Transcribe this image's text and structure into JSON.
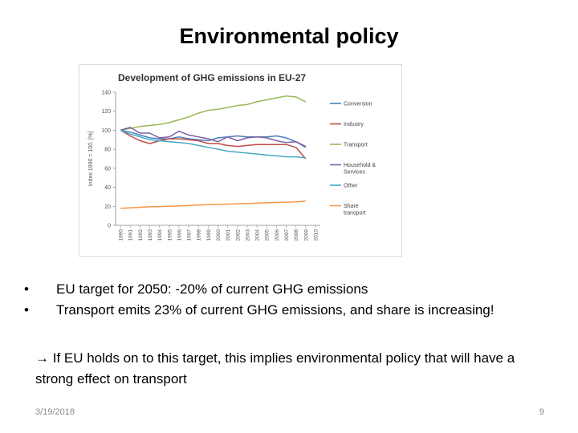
{
  "slide": {
    "title": "Environmental policy",
    "bullets": [
      "EU target for 2050:  -20% of current GHG emissions",
      "Transport emits 23% of current GHG emissions, and share is increasing!"
    ],
    "bullet_symbol": "•",
    "note": "→ If EU holds on to this target, this implies environmental policy that will have a strong effect on transport",
    "footer_date": "3/19/2018",
    "page_number": "9"
  },
  "chart_data": {
    "type": "line",
    "title": "Development of GHG emissions in EU-27",
    "ylabel": "Index 1990 = 100, [%]",
    "xlabel": "",
    "ylim": [
      0,
      140
    ],
    "yticks": [
      0,
      20,
      40,
      60,
      80,
      100,
      120,
      140
    ],
    "grid": false,
    "legend_position": "right",
    "x": [
      "1990",
      "1991",
      "1992",
      "1993",
      "1994",
      "1995",
      "1996",
      "1997",
      "1998",
      "1999",
      "2000",
      "2001",
      "2002",
      "2003",
      "2004",
      "2005",
      "2006",
      "2007",
      "2008",
      "2009",
      "2010"
    ],
    "series": [
      {
        "name": "Conversion",
        "color": "#4a7ebb",
        "values": [
          100,
          98,
          95,
          92,
          91,
          91,
          93,
          91,
          90,
          89,
          92,
          93,
          94,
          93,
          93,
          93,
          94,
          92,
          88,
          82,
          null
        ]
      },
      {
        "name": "Industry",
        "color": "#be4b48",
        "values": [
          100,
          94,
          89,
          86,
          89,
          91,
          91,
          90,
          89,
          86,
          86,
          84,
          83,
          84,
          85,
          85,
          85,
          85,
          82,
          70,
          null
        ]
      },
      {
        "name": "Transport",
        "color": "#98b954",
        "values": [
          100,
          102,
          104,
          105,
          106,
          108,
          111,
          114,
          118,
          121,
          122,
          124,
          126,
          127,
          130,
          132,
          134,
          136,
          135,
          130,
          null
        ]
      },
      {
        "name": "Household & Services",
        "color": "#7d60a0",
        "values": [
          100,
          103,
          97,
          97,
          92,
          93,
          99,
          95,
          93,
          91,
          88,
          93,
          89,
          92,
          93,
          92,
          89,
          87,
          88,
          83,
          null
        ]
      },
      {
        "name": "Other",
        "color": "#46aac5",
        "values": [
          100,
          96,
          93,
          90,
          89,
          88,
          87,
          86,
          84,
          82,
          80,
          78,
          77,
          76,
          75,
          74,
          73,
          72,
          72,
          71,
          null
        ]
      },
      {
        "name": "Share transport",
        "color": "#f79646",
        "values": [
          18,
          18.5,
          19,
          19.5,
          19.7,
          20,
          20.3,
          20.8,
          21.3,
          21.8,
          22,
          22.3,
          22.7,
          23,
          23.3,
          23.7,
          24,
          24.3,
          24.7,
          25.5,
          null
        ]
      }
    ]
  }
}
